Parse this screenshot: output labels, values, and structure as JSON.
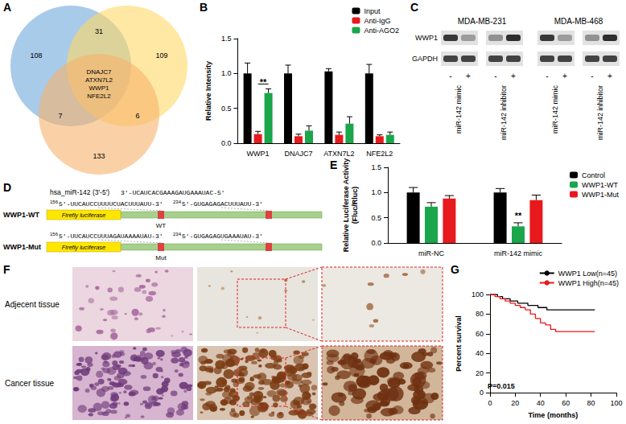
{
  "chart_data": [
    {
      "panel": "B",
      "type": "bar",
      "categories": [
        "WWP1",
        "DNAJC7",
        "ATXN7L2",
        "NFE2L2"
      ],
      "series": [
        {
          "name": "Input",
          "color": "#000000",
          "values": [
            1.0,
            1.0,
            1.03,
            1.0
          ],
          "errors": [
            0.15,
            0.12,
            0.04,
            0.13
          ]
        },
        {
          "name": "Anti-IgG",
          "color": "#e8191c",
          "values": [
            0.13,
            0.1,
            0.12,
            0.1
          ],
          "errors": [
            0.04,
            0.03,
            0.04,
            0.02
          ]
        },
        {
          "name": "Anti-AGO2",
          "color": "#1aa64b",
          "values": [
            0.72,
            0.18,
            0.28,
            0.12
          ],
          "errors": [
            0.06,
            0.07,
            0.1,
            0.04
          ]
        }
      ],
      "ylabel": "Relative Intensity",
      "ylim": [
        0,
        1.5
      ],
      "yticks": [
        {
          "value": 0,
          "label": "0.0"
        },
        0.5,
        {
          "value": 1,
          "label": "1.0"
        },
        1.5
      ],
      "grid": false,
      "legend": "upper right",
      "annotations": [
        {
          "text": "**",
          "category": "WWP1",
          "series": [
            "Anti-IgG",
            "Anti-AGO2"
          ]
        }
      ]
    },
    {
      "panel": "E",
      "type": "bar",
      "categories": [
        "miR-NC",
        "miR-142 mimic"
      ],
      "series": [
        {
          "name": "Control",
          "color": "#000000",
          "values": [
            1.0,
            1.0
          ],
          "errors": [
            0.1,
            0.08
          ]
        },
        {
          "name": "WWP1-WT",
          "color": "#1aa64b",
          "values": [
            0.72,
            0.33
          ],
          "errors": [
            0.08,
            0.07
          ]
        },
        {
          "name": "WWP1-Mut",
          "color": "#e8191c",
          "values": [
            0.88,
            0.85
          ],
          "errors": [
            0.06,
            0.1
          ]
        }
      ],
      "ylabel": [
        "Relative Luciferase Activity",
        "(Fluc/Rluc)"
      ],
      "ylim": [
        0,
        1.5
      ],
      "yticks": [
        {
          "value": 0,
          "label": "0.0"
        },
        0.5,
        {
          "value": 1,
          "label": "1.0"
        },
        1.5
      ],
      "grid": false,
      "legend": "upper right",
      "annotations": [
        {
          "text": "**",
          "category": "miR-142 mimic",
          "series": [
            "WWP1-WT"
          ]
        }
      ]
    },
    {
      "panel": "G",
      "type": "line",
      "line_style": "step",
      "xlabel": "Time (months)",
      "ylabel": "Percent survival",
      "xlim": [
        0,
        100
      ],
      "xticks": [
        0,
        20,
        40,
        60,
        80,
        100
      ],
      "ylim": [
        0,
        100
      ],
      "yticks": [
        0,
        20,
        40,
        60,
        80,
        100
      ],
      "grid": false,
      "legend": "upper right",
      "series": [
        {
          "name": "WWP1 Low(n=45)",
          "color": "#000000",
          "x": [
            0,
            6,
            10,
            16,
            22,
            30,
            38,
            45,
            83
          ],
          "values": [
            100,
            97.8,
            95.6,
            93.3,
            91.1,
            88.9,
            86.7,
            84.4,
            84.4
          ]
        },
        {
          "name": "WWP1 High(n=45)",
          "color": "#e8191c",
          "x": [
            0,
            4,
            8,
            12,
            16,
            20,
            24,
            28,
            32,
            36,
            40,
            44,
            48,
            52,
            83
          ],
          "values": [
            100,
            97.8,
            95.6,
            93.3,
            91.1,
            88.9,
            86.7,
            84.4,
            80,
            75.6,
            71.1,
            68.9,
            64.4,
            62.2,
            62.2
          ]
        }
      ],
      "annotations": [
        {
          "text": "P=0.015"
        }
      ]
    }
  ],
  "venn": {
    "panel": "A",
    "sets": [
      {
        "color": "#6fa8dc"
      },
      {
        "color": "#ffd966"
      },
      {
        "color": "#f6b26b"
      }
    ],
    "regions": [
      {
        "sets": [
          0
        ],
        "count": 108
      },
      {
        "sets": [
          0,
          1
        ],
        "count": 31
      },
      {
        "sets": [
          1
        ],
        "count": 109
      },
      {
        "sets": [
          0,
          2
        ],
        "count": 7
      },
      {
        "sets": [
          1,
          2
        ],
        "count": 6
      },
      {
        "sets": [
          2
        ],
        "count": 133
      },
      {
        "sets": [
          0,
          1,
          2
        ],
        "labels": [
          "DNAJC7",
          "ATXN7L2",
          "WWP1",
          "NFE2L2"
        ]
      }
    ]
  },
  "western_blot": {
    "panel": "C",
    "cell_lines": [
      "MDA-MB-231",
      "MDA-MB-468"
    ],
    "proteins": [
      "WWP1",
      "GAPDH"
    ],
    "lane_signs": [
      "-",
      "+"
    ],
    "treatments": [
      "miR-142 mimic",
      "miR-142 inhibitor"
    ]
  },
  "construct": {
    "panel": "D",
    "mirna": {
      "label": "hsa_miR-142 (3'-5')",
      "sequence": "3'-UCAUCACGAAAGAUGAAAUAC-5'"
    },
    "reporter": "Firefly luciferase",
    "rows": [
      {
        "name": "WWP1-WT",
        "site_label": "WT",
        "sites": [
          {
            "position": 156,
            "sequence": "5'-UUCAUCCUUUUCUACUUUAUU-3'"
          },
          {
            "position": 234,
            "sequence": "5'-GUGAGAGACUUUAUU-3'"
          }
        ]
      },
      {
        "name": "WWP1-Mut",
        "site_label": "Mut",
        "sites": [
          {
            "position": 156,
            "sequence": "5'-UUCAUCCUUUAGAUAAAAUAU-3'"
          },
          {
            "position": 234,
            "sequence": "5'-GUGAGAGUGAAAUAU-3'"
          }
        ]
      }
    ]
  },
  "histology": {
    "panel": "F",
    "rows": [
      "Adjecent tissue",
      "Cancer tissue"
    ]
  }
}
